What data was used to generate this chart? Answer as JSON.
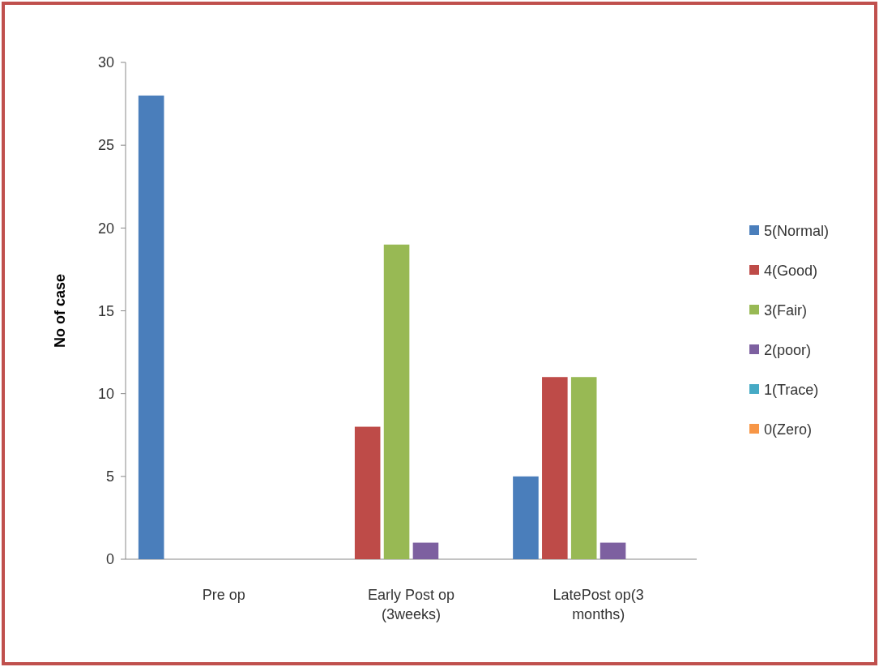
{
  "chart_data": {
    "type": "bar",
    "ylabel": "No of case",
    "categories": [
      "Pre op",
      "Early Post op (3weeks)",
      "LatePost op(3 months)"
    ],
    "series": [
      {
        "name": "5(Normal)",
        "color": "#4a7ebb",
        "values": [
          28,
          0,
          5
        ]
      },
      {
        "name": "4(Good)",
        "color": "#be4b48",
        "values": [
          0,
          8,
          11
        ]
      },
      {
        "name": "3(Fair)",
        "color": "#98b954",
        "values": [
          0,
          19,
          11
        ]
      },
      {
        "name": "2(poor)",
        "color": "#7d60a0",
        "values": [
          0,
          1,
          1
        ]
      },
      {
        "name": "1(Trace)",
        "color": "#46aac5",
        "values": [
          0,
          0,
          0
        ]
      },
      {
        "name": "0(Zero)",
        "color": "#f79646",
        "values": [
          0,
          0,
          0
        ]
      }
    ],
    "ylim": [
      0,
      30
    ],
    "yticks": [
      0,
      5,
      10,
      15,
      20,
      25,
      30
    ],
    "grid": false,
    "legend": "right"
  }
}
